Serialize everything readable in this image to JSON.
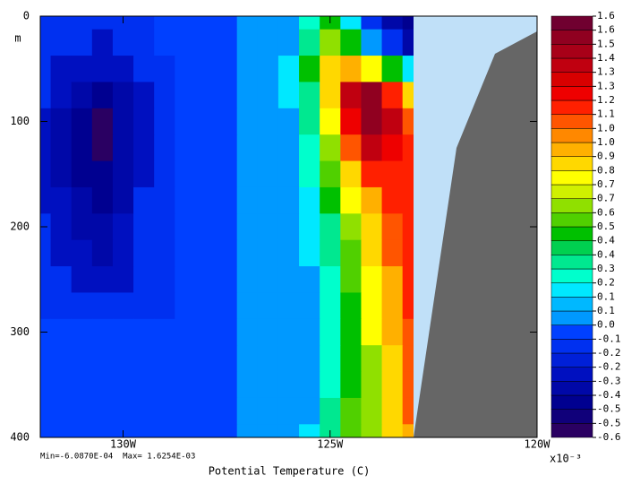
{
  "chart_data": {
    "type": "contour",
    "x_label": "Potential Temperature (C)",
    "y_unit": "m",
    "stats": "Min=-6.0870E-04  Max= 1.6254E-03",
    "multiplier": "x10⁻³",
    "xlim": [
      -132,
      -120
    ],
    "xticks": [
      {
        "value": -130,
        "label": "130W"
      },
      {
        "value": -125,
        "label": "125W"
      },
      {
        "value": -120,
        "label": "120W"
      }
    ],
    "ylim": [
      0,
      400
    ],
    "yticks": [
      0,
      100,
      200,
      300,
      400
    ],
    "levels": [
      -0.6,
      -0.5,
      -0.5,
      -0.4,
      -0.3,
      -0.2,
      -0.2,
      -0.1,
      {
        "value": 0,
        "label": "0.0"
      },
      0.1,
      0.1,
      0.2,
      0.3,
      0.4,
      0.4,
      0.5,
      0.6,
      0.7,
      0.7,
      0.8,
      0.9,
      {
        "value": 1,
        "label": "1.0"
      },
      {
        "value": 1,
        "label": "1.0"
      },
      1.1,
      1.2,
      1.3,
      1.3,
      1.4,
      1.5,
      1.6,
      1.6
    ],
    "colors": [
      "#2a0062",
      "#10007a",
      "#000090",
      "#0008a8",
      "#0010c0",
      "#0020d8",
      "#0030f0",
      "#0040ff",
      "#0099ff",
      "#00b8ff",
      "#00e8ff",
      "#00ffcc",
      "#00e890",
      "#00d050",
      "#00c000",
      "#50d000",
      "#90e000",
      "#d0f000",
      "#ffff00",
      "#ffd800",
      "#ffb000",
      "#ff8800",
      "#ff5500",
      "#ff2000",
      "#ee0000",
      "#d80000",
      "#c00010",
      "#a80018",
      "#900020",
      "#700030"
    ],
    "x": [
      -132,
      -131.5,
      -131,
      -130.5,
      -130,
      -129.5,
      -129,
      -128.5,
      -128,
      -127.5,
      -127,
      -126.5,
      -126,
      -125.5,
      -125,
      -124.5,
      -124,
      -123.5,
      -123
    ],
    "y": [
      0,
      25,
      50,
      75,
      100,
      125,
      150,
      175,
      200,
      225,
      250,
      275,
      300,
      325,
      350,
      375,
      400
    ],
    "z": [
      [
        -0.15,
        -0.15,
        -0.2,
        -0.2,
        -0.2,
        -0.15,
        -0.1,
        -0.1,
        -0.05,
        -0.05,
        0.0,
        0.0,
        0.05,
        0.2,
        0.4,
        0.1,
        -0.2,
        -0.35,
        -0.5
      ],
      [
        -0.15,
        -0.2,
        -0.2,
        -0.25,
        -0.2,
        -0.15,
        -0.1,
        -0.1,
        -0.05,
        -0.05,
        0.0,
        0.0,
        0.05,
        0.3,
        0.6,
        0.4,
        0.0,
        -0.2,
        -0.4
      ],
      [
        -0.2,
        -0.25,
        -0.3,
        -0.3,
        -0.25,
        -0.2,
        -0.15,
        -0.1,
        -0.05,
        -0.05,
        0.0,
        0.0,
        0.1,
        0.4,
        0.8,
        0.9,
        0.7,
        0.4,
        0.1
      ],
      [
        -0.2,
        -0.3,
        -0.4,
        -0.45,
        -0.35,
        -0.25,
        -0.15,
        -0.1,
        -0.05,
        -0.05,
        0.0,
        0.0,
        0.1,
        0.35,
        0.8,
        1.3,
        1.5,
        1.1,
        0.8
      ],
      [
        -0.25,
        -0.35,
        -0.5,
        -0.55,
        -0.4,
        -0.25,
        -0.15,
        -0.1,
        -0.05,
        -0.05,
        0.0,
        0.0,
        0.05,
        0.3,
        0.7,
        1.2,
        1.55,
        1.3,
        1.0
      ],
      [
        -0.25,
        -0.35,
        -0.5,
        -0.6,
        -0.4,
        -0.25,
        -0.15,
        -0.1,
        -0.05,
        -0.05,
        0.0,
        0.0,
        0.05,
        0.25,
        0.6,
        1.0,
        1.3,
        1.2,
        1.1
      ],
      [
        -0.25,
        -0.35,
        -0.45,
        -0.5,
        -0.35,
        -0.25,
        -0.15,
        -0.1,
        -0.05,
        -0.05,
        0.0,
        0.0,
        0.05,
        0.2,
        0.5,
        0.85,
        1.1,
        1.15,
        1.15
      ],
      [
        -0.25,
        -0.3,
        -0.4,
        -0.45,
        -0.35,
        -0.2,
        -0.15,
        -0.1,
        -0.05,
        -0.05,
        0.0,
        0.0,
        0.0,
        0.15,
        0.4,
        0.7,
        0.95,
        1.1,
        1.15
      ],
      [
        -0.2,
        -0.3,
        -0.35,
        -0.4,
        -0.3,
        -0.2,
        -0.15,
        -0.1,
        -0.05,
        -0.05,
        0.0,
        0.0,
        0.0,
        0.1,
        0.35,
        0.6,
        0.85,
        1.05,
        1.15
      ],
      [
        -0.2,
        -0.25,
        -0.3,
        -0.35,
        -0.3,
        -0.2,
        -0.15,
        -0.1,
        -0.05,
        -0.05,
        0.0,
        0.0,
        0.0,
        0.1,
        0.3,
        0.55,
        0.8,
        1.0,
        1.15
      ],
      [
        -0.15,
        -0.2,
        -0.25,
        -0.25,
        -0.25,
        -0.2,
        -0.12,
        -0.1,
        -0.05,
        -0.05,
        0.0,
        0.0,
        0.0,
        0.05,
        0.25,
        0.5,
        0.75,
        0.95,
        1.1
      ],
      [
        -0.12,
        -0.15,
        -0.18,
        -0.2,
        -0.18,
        -0.15,
        -0.12,
        -0.08,
        -0.05,
        -0.05,
        0.0,
        0.0,
        0.0,
        0.05,
        0.2,
        0.45,
        0.7,
        0.9,
        1.1
      ],
      [
        -0.08,
        -0.08,
        -0.1,
        -0.1,
        -0.1,
        -0.08,
        -0.08,
        -0.05,
        -0.05,
        -0.03,
        0.0,
        0.0,
        0.0,
        0.05,
        0.2,
        0.45,
        0.7,
        0.9,
        1.05
      ],
      [
        -0.08,
        -0.08,
        -0.08,
        -0.08,
        -0.08,
        -0.08,
        -0.05,
        -0.05,
        -0.03,
        -0.03,
        0.0,
        0.0,
        0.0,
        0.05,
        0.2,
        0.45,
        0.65,
        0.85,
        1.0
      ],
      [
        -0.08,
        -0.08,
        -0.08,
        -0.08,
        -0.08,
        -0.05,
        -0.05,
        -0.03,
        -0.03,
        -0.03,
        0.0,
        0.0,
        0.0,
        0.05,
        0.25,
        0.45,
        0.65,
        0.85,
        1.0
      ],
      [
        -0.08,
        -0.08,
        -0.08,
        -0.08,
        -0.05,
        -0.05,
        -0.03,
        -0.03,
        -0.03,
        -0.03,
        0.0,
        0.0,
        0.0,
        0.05,
        0.3,
        0.5,
        0.65,
        0.85,
        1.0
      ],
      [
        -0.08,
        -0.08,
        -0.08,
        -0.05,
        -0.05,
        -0.05,
        -0.03,
        -0.03,
        -0.03,
        -0.03,
        0.0,
        0.0,
        0.0,
        0.1,
        0.3,
        0.5,
        0.65,
        0.8,
        0.95
      ]
    ]
  }
}
